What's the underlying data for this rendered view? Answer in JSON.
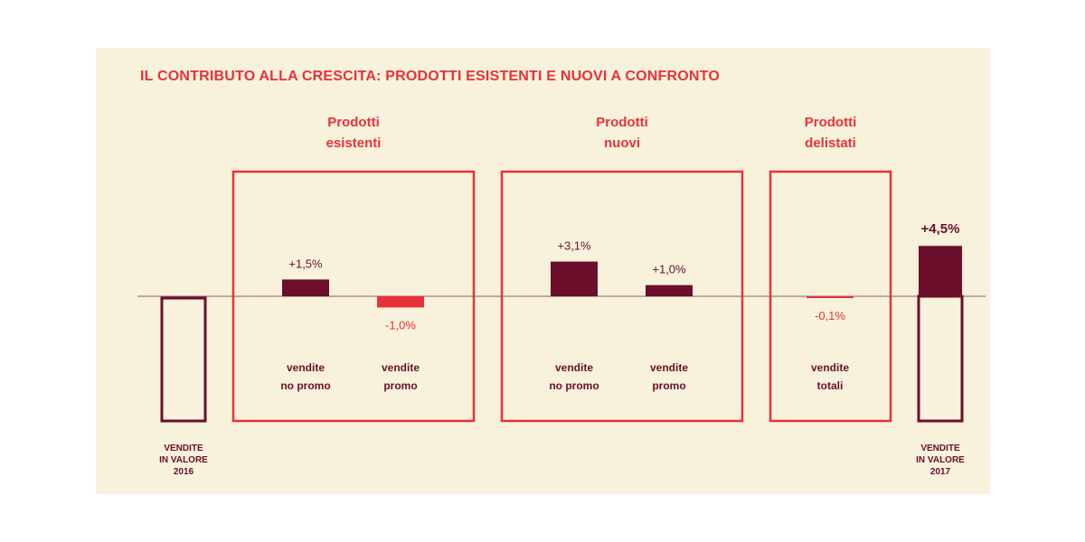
{
  "colors": {
    "background": "#f8f1dc",
    "accent_red": "#e8323a",
    "dark_maroon": "#6b0f2a",
    "baseline": "#8a5a6a"
  },
  "title": "IL CONTRIBUTO ALLA CRESCITA: PRODOTTI ESISTENTI E NUOVI A CONFRONTO",
  "chart_data": {
    "type": "bar",
    "title": "IL CONTRIBUTO ALLA CRESCITA: PRODOTTI ESISTENTI E NUOVI A CONFRONTO",
    "groups": [
      {
        "label": [
          "Prodotti",
          "esistenti"
        ],
        "bars": [
          0,
          1
        ]
      },
      {
        "label": [
          "Prodotti",
          "nuovi"
        ],
        "bars": [
          2,
          3
        ]
      },
      {
        "label": [
          "Prodotti",
          "delistati"
        ],
        "bars": [
          4
        ]
      }
    ],
    "bars": [
      {
        "category": [
          "vendite",
          "no promo"
        ],
        "value": 1.5,
        "label": "+1,5%",
        "color": "#6b0f2a"
      },
      {
        "category": [
          "vendite",
          "promo"
        ],
        "value": -1.0,
        "label": "-1,0%",
        "color": "#e8323a"
      },
      {
        "category": [
          "vendite",
          "no promo"
        ],
        "value": 3.1,
        "label": "+3,1%",
        "color": "#6b0f2a"
      },
      {
        "category": [
          "vendite",
          "promo"
        ],
        "value": 1.0,
        "label": "+1,0%",
        "color": "#6b0f2a"
      },
      {
        "category": [
          "vendite",
          "totali"
        ],
        "value": -0.1,
        "label": "-0,1%",
        "color": "#e8323a"
      }
    ],
    "start": {
      "label": [
        "VENDITE",
        "IN VALORE",
        "2016"
      ]
    },
    "end": {
      "label": [
        "VENDITE",
        "IN VALORE",
        "2017"
      ],
      "value": 4.5,
      "value_label": "+4,5%"
    }
  }
}
